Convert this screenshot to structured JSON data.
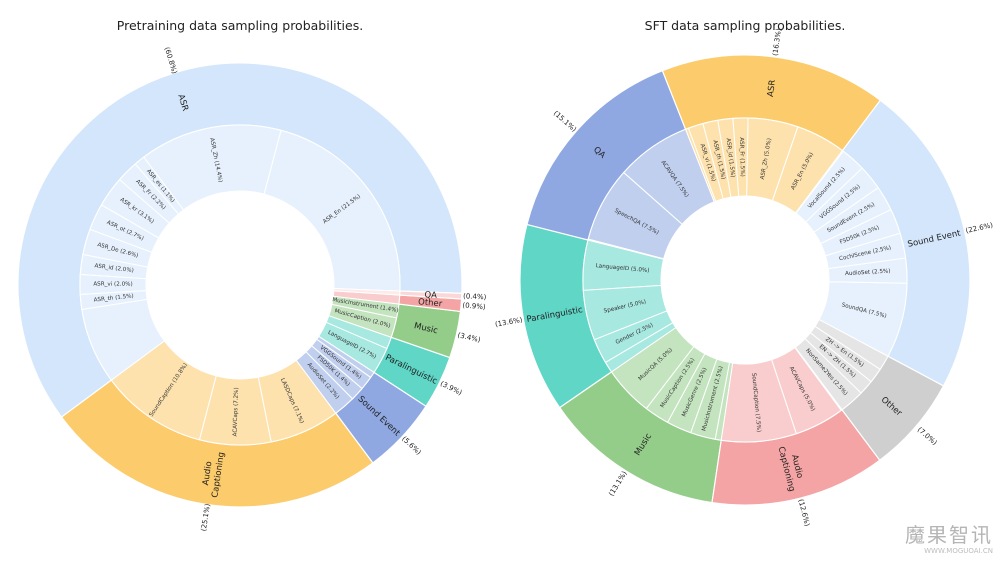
{
  "chart_data": [
    {
      "type": "sunburst",
      "title": "Pretraining data sampling probabilities.",
      "start_angle_deg": -2.16,
      "outer": [
        {
          "label": "ASR",
          "value": 60.8,
          "pct_label": "(60.8%)",
          "color": "#d3e6fb"
        },
        {
          "label": "Audio\nCaptioning",
          "value": 25.1,
          "pct_label": "(25.1%)",
          "color": "#fccb6b"
        },
        {
          "label": "Sound Event",
          "value": 5.6,
          "pct_label": "(5.6%)",
          "color": "#8fa8e2"
        },
        {
          "label": "Paralinguistic",
          "value": 3.9,
          "pct_label": "(3.9%)",
          "color": "#5fd6c6"
        },
        {
          "label": "Music",
          "value": 3.4,
          "pct_label": "(3.4%)",
          "color": "#94cd8a"
        },
        {
          "label": "Other",
          "value": 0.9,
          "pct_label": "(0.9%)",
          "color": "#f4a4a4"
        },
        {
          "label": "QA",
          "value": 0.4,
          "pct_label": "(0.4%)",
          "color": "#fbd8d8"
        }
      ],
      "inner": [
        {
          "label": "ASR_En (21.5%)",
          "value": 21.5,
          "parent": 0
        },
        {
          "label": "ASR_Zh (14.4%)",
          "value": 14.4,
          "parent": 0
        },
        {
          "label": "ASR_es (1.1%)",
          "value": 1.1,
          "parent": 0
        },
        {
          "label": "ASR_Fr (2.2%)",
          "value": 2.2,
          "parent": 0
        },
        {
          "label": "ASR_kr (3.1%)",
          "value": 3.1,
          "parent": 0
        },
        {
          "label": "ASR_ot (2.7%)",
          "value": 2.7,
          "parent": 0
        },
        {
          "label": "ASR_De (2.6%)",
          "value": 2.6,
          "parent": 0
        },
        {
          "label": "ASR_id (2.0%)",
          "value": 2.0,
          "parent": 0
        },
        {
          "label": "ASR_vi (2.0%)",
          "value": 2.0,
          "parent": 0
        },
        {
          "label": "ASR_th (1.5%)",
          "value": 1.5,
          "parent": 0
        },
        {
          "label": "",
          "value": 7.7,
          "parent": 0
        },
        {
          "label": "SoundCaption (10.8%)",
          "value": 10.8,
          "parent": 1
        },
        {
          "label": "ACAVCaps (7.2%)",
          "value": 7.2,
          "parent": 1
        },
        {
          "label": "LASDCaps (7.1%)",
          "value": 7.1,
          "parent": 1
        },
        {
          "label": "AudioSet (2.2%)",
          "value": 2.2,
          "parent": 2
        },
        {
          "label": "FSD50K (1.4%)",
          "value": 1.4,
          "parent": 2
        },
        {
          "label": "VGGSound (1.4%)",
          "value": 1.4,
          "parent": 2
        },
        {
          "label": "",
          "value": 0.6,
          "parent": 2
        },
        {
          "label": "LanguageID (2.7%)",
          "value": 2.7,
          "parent": 3
        },
        {
          "label": "",
          "value": 1.2,
          "parent": 3
        },
        {
          "label": "MusicCaption (2.0%)",
          "value": 2.0,
          "parent": 4
        },
        {
          "label": "MusicInstrument (1.4%)",
          "value": 1.4,
          "parent": 4
        },
        {
          "label": "",
          "value": 0.9,
          "parent": 5
        },
        {
          "label": "",
          "value": 0.4,
          "parent": 6
        }
      ]
    },
    {
      "type": "sunburst",
      "title": "SFT data sampling probabilities.",
      "start_angle_deg": -28.08,
      "outer": [
        {
          "label": "Sound Event",
          "value": 22.6,
          "pct_label": "(22.6%)",
          "color": "#d3e6fb"
        },
        {
          "label": "ASR",
          "value": 16.3,
          "pct_label": "(16.3%)",
          "color": "#fccb6b"
        },
        {
          "label": "QA",
          "value": 15.1,
          "pct_label": "(15.1%)",
          "color": "#8fa8e2"
        },
        {
          "label": "Paralinguistic",
          "value": 13.6,
          "pct_label": "(13.6%)",
          "color": "#5fd6c6"
        },
        {
          "label": "Music",
          "value": 13.1,
          "pct_label": "(13.1%)",
          "color": "#94cd8a"
        },
        {
          "label": "Audio\nCaptioning",
          "value": 12.6,
          "pct_label": "(12.6%)",
          "color": "#f4a4a4"
        },
        {
          "label": "Other",
          "value": 7.0,
          "pct_label": "(7.0%)",
          "color": "#cfcfcf"
        }
      ],
      "inner": [
        {
          "label": "SoundQA (7.5%)",
          "value": 7.5,
          "parent": 0
        },
        {
          "label": "AudioSet (2.5%)",
          "value": 2.5,
          "parent": 0
        },
        {
          "label": "CochlScene (2.5%)",
          "value": 2.5,
          "parent": 0
        },
        {
          "label": "FSD50k (2.5%)",
          "value": 2.5,
          "parent": 0
        },
        {
          "label": "SoundEvent (2.5%)",
          "value": 2.5,
          "parent": 0
        },
        {
          "label": "VGGSound (2.5%)",
          "value": 2.5,
          "parent": 0
        },
        {
          "label": "VocalSound (2.5%)",
          "value": 2.5,
          "parent": 0
        },
        {
          "label": "",
          "value": 0.1,
          "parent": 0
        },
        {
          "label": "ASR_En (5.0%)",
          "value": 5.0,
          "parent": 1
        },
        {
          "label": "ASR_Zh (5.0%)",
          "value": 5.0,
          "parent": 1
        },
        {
          "label": "ASR_Fr (1.5%)",
          "value": 1.5,
          "parent": 1
        },
        {
          "label": "ASR_id (1.5%)",
          "value": 1.5,
          "parent": 1
        },
        {
          "label": "ASR_th (1.5%)",
          "value": 1.5,
          "parent": 1
        },
        {
          "label": "ASR_vi (1.5%)",
          "value": 1.5,
          "parent": 1
        },
        {
          "label": "",
          "value": 0.3,
          "parent": 1
        },
        {
          "label": "ACAVQA (7.5%)",
          "value": 7.5,
          "parent": 2
        },
        {
          "label": "SpeechQA (7.5%)",
          "value": 7.5,
          "parent": 2
        },
        {
          "label": "",
          "value": 0.1,
          "parent": 2
        },
        {
          "label": "LanguageID (5.0%)",
          "value": 5.0,
          "parent": 3
        },
        {
          "label": "Speaker (5.0%)",
          "value": 5.0,
          "parent": 3
        },
        {
          "label": "Gender (2.5%)",
          "value": 2.5,
          "parent": 3
        },
        {
          "label": "",
          "value": 1.1,
          "parent": 3
        },
        {
          "label": "MusicQA (5.0%)",
          "value": 5.0,
          "parent": 4
        },
        {
          "label": "MusicCaption (2.5%)",
          "value": 2.5,
          "parent": 4
        },
        {
          "label": "MusicGenre (2.5%)",
          "value": 2.5,
          "parent": 4
        },
        {
          "label": "MusicInstrument (2.5%)",
          "value": 2.5,
          "parent": 4
        },
        {
          "label": "",
          "value": 0.6,
          "parent": 4
        },
        {
          "label": "SoundCaption (7.5%)",
          "value": 7.5,
          "parent": 5
        },
        {
          "label": "ACAVCaps (5.0%)",
          "value": 5.0,
          "parent": 5
        },
        {
          "label": "",
          "value": 0.1,
          "parent": 5
        },
        {
          "label": "NonSame2Yes (2.5%)",
          "value": 2.5,
          "parent": 6
        },
        {
          "label": "EN -> ZH (1.5%)",
          "value": 1.5,
          "parent": 6
        },
        {
          "label": "ZH -> En (1.5%)",
          "value": 1.5,
          "parent": 6
        },
        {
          "label": "",
          "value": 1.5,
          "parent": 6
        }
      ]
    }
  ],
  "watermark": {
    "text": "魔果智讯",
    "url": "WWW.MOGUOAI.CN"
  }
}
